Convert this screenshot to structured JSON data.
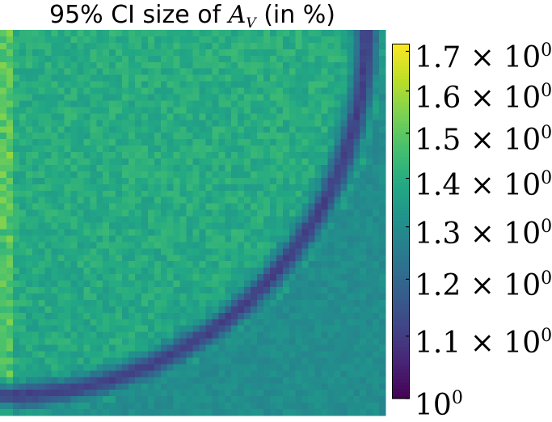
{
  "chart_data": {
    "type": "heatmap",
    "title": "95% CI size of A_V (in %)",
    "title_parts": {
      "prefix": "95% CI size of ",
      "math_base": "A",
      "math_sub": "V",
      "suffix": " (in %)"
    },
    "xlabel": "",
    "ylabel": "",
    "grid": false,
    "colormap": "viridis",
    "color_scale": "log",
    "color_range": [
      1.0,
      1.72
    ],
    "colorbar_ticks": [
      {
        "value": 1.0,
        "label": "10",
        "exp": "0"
      },
      {
        "value": 1.1,
        "label": "1.1 × 10",
        "exp": "0"
      },
      {
        "value": 1.2,
        "label": "1.2 × 10",
        "exp": "0"
      },
      {
        "value": 1.3,
        "label": "1.3 × 10",
        "exp": "0"
      },
      {
        "value": 1.4,
        "label": "1.4 × 10",
        "exp": "0"
      },
      {
        "value": 1.5,
        "label": "1.5 × 10",
        "exp": "0"
      },
      {
        "value": 1.6,
        "label": "1.6 × 10",
        "exp": "0"
      },
      {
        "value": 1.7,
        "label": "1.7 × 10",
        "exp": "0"
      }
    ],
    "grid_cols": 60,
    "grid_rows": 60,
    "background_level": 1.4,
    "band": {
      "description_value": 1.12,
      "min_value": 1.05
    }
  }
}
